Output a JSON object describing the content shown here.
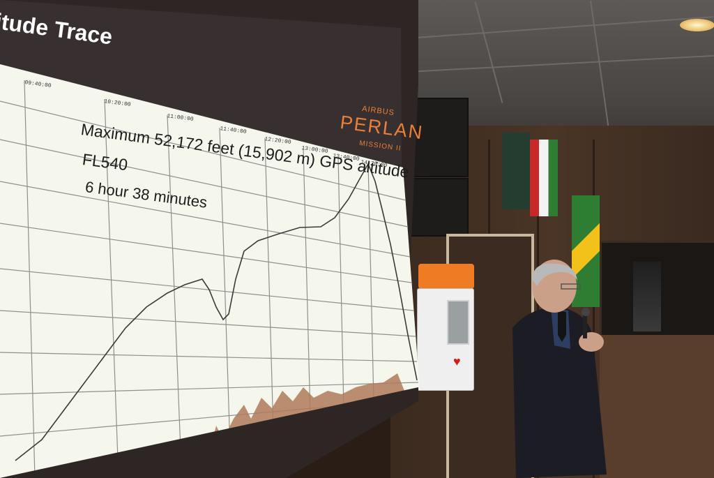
{
  "slide": {
    "title": "itude Trace",
    "brand_top": "AIRBUS",
    "brand_name": "PERLAN",
    "brand_sub": "MISSION II",
    "annotation_line1": "Maximum  52,172 feet (15,902 m) GPS altitude",
    "annotation_line2": "FL540",
    "annotation_line3": "6 hour 38 minutes",
    "time_labels": [
      "09:40:00",
      "10:20:00",
      "11:00:00",
      "11:40:00",
      "12:20:00",
      "13:00:00",
      "13:40:00",
      "14:20:00"
    ]
  },
  "colors": {
    "screen_bg": "#f5f7ec",
    "grid": "#8f8f8f",
    "trace": "#3a3a3a",
    "accent": "#e8803a",
    "lower_fill": "#b07a5a"
  }
}
